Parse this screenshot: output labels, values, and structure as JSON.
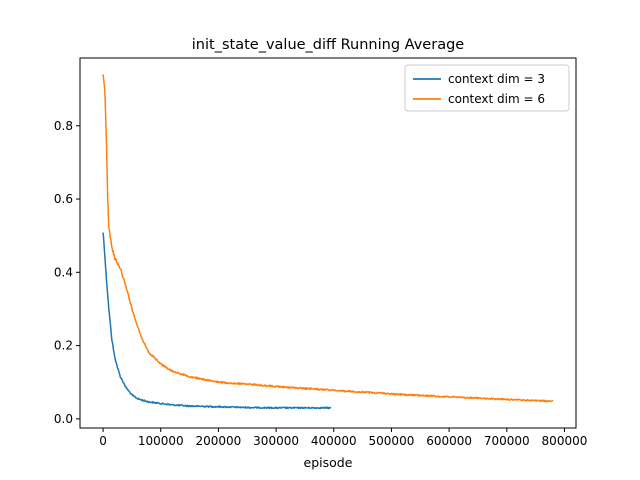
{
  "chart_data": {
    "type": "line",
    "title": "init_state_value_diff Running Average",
    "xlabel": "episode",
    "ylabel": "",
    "xlim": [
      -40000,
      820000
    ],
    "ylim": [
      -0.025,
      0.985
    ],
    "x_ticks": [
      0,
      100000,
      200000,
      300000,
      400000,
      500000,
      600000,
      700000,
      800000
    ],
    "x_tick_labels": [
      "0",
      "100000",
      "200000",
      "300000",
      "400000",
      "500000",
      "600000",
      "700000",
      "800000"
    ],
    "y_ticks": [
      0.0,
      0.2,
      0.4,
      0.6,
      0.8
    ],
    "y_tick_labels": [
      "0.0",
      "0.2",
      "0.4",
      "0.6",
      "0.8"
    ],
    "grid": false,
    "legend_position": "top-right",
    "series": [
      {
        "name": "context dim = 3",
        "color": "#1f77b4",
        "x": [
          0,
          2500,
          5000,
          10000,
          15000,
          20000,
          25000,
          30000,
          40000,
          50000,
          60000,
          70000,
          80000,
          100000,
          120000,
          150000,
          200000,
          250000,
          300000,
          350000,
          395000
        ],
        "y": [
          0.51,
          0.46,
          0.4,
          0.3,
          0.22,
          0.17,
          0.14,
          0.115,
          0.085,
          0.065,
          0.055,
          0.05,
          0.046,
          0.042,
          0.038,
          0.035,
          0.033,
          0.031,
          0.03,
          0.03,
          0.03
        ]
      },
      {
        "name": "context dim = 6",
        "color": "#ff7f0e",
        "x": [
          0,
          3000,
          6000,
          8000,
          10000,
          15000,
          20000,
          30000,
          40000,
          50000,
          60000,
          70000,
          80000,
          100000,
          120000,
          150000,
          200000,
          250000,
          300000,
          400000,
          500000,
          600000,
          700000,
          780000
        ],
        "y": [
          0.945,
          0.9,
          0.75,
          0.6,
          0.52,
          0.47,
          0.44,
          0.41,
          0.36,
          0.3,
          0.25,
          0.21,
          0.18,
          0.15,
          0.13,
          0.115,
          0.1,
          0.095,
          0.088,
          0.078,
          0.068,
          0.06,
          0.053,
          0.048
        ]
      }
    ]
  }
}
